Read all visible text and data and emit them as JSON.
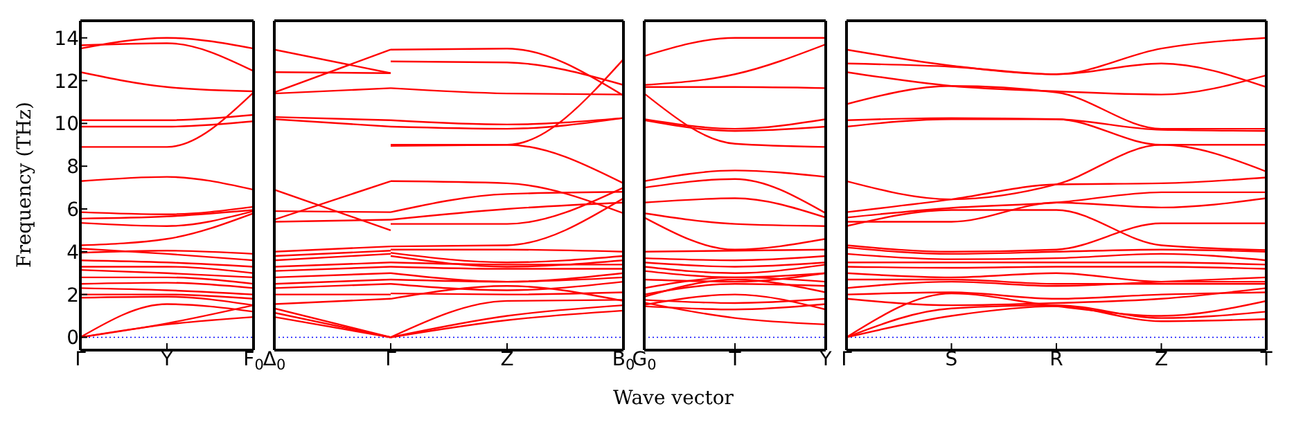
{
  "chart_data": [
    {
      "type": "line",
      "color": "#ff0000",
      "ylabel": "Frequency (THz)",
      "annotations": [
        "Wave vector"
      ],
      "categories": [
        "Γ",
        "Y",
        "F$_{0}$"
      ],
      "ylim": [
        -0.6,
        14.8
      ],
      "yticks": [
        0,
        2,
        4,
        6,
        8,
        10,
        12,
        14
      ],
      "ref_lines": [
        {
          "axis": "y",
          "value": 0,
          "color": "#0000ff",
          "line_style": "dotted"
        }
      ],
      "series": [
        {
          "values": [
            13.5,
            14.0,
            13.5
          ]
        },
        {
          "values": [
            13.65,
            13.75,
            12.45
          ]
        },
        {
          "values": [
            12.4,
            11.7,
            11.5
          ]
        },
        {
          "values": [
            10.15,
            10.15,
            10.4
          ]
        },
        {
          "values": [
            9.85,
            9.85,
            10.1
          ]
        },
        {
          "values": [
            8.9,
            8.9,
            11.45
          ]
        },
        {
          "values": [
            7.3,
            7.5,
            6.9
          ]
        },
        {
          "values": [
            5.85,
            5.75,
            6.1
          ]
        },
        {
          "values": [
            5.55,
            5.65,
            5.95
          ]
        },
        {
          "values": [
            5.35,
            5.2,
            5.9
          ]
        },
        {
          "values": [
            4.3,
            4.6,
            5.8
          ]
        },
        {
          "values": [
            4.15,
            3.9,
            3.6
          ]
        },
        {
          "values": [
            3.95,
            4.05,
            3.9
          ]
        },
        {
          "values": [
            3.6,
            3.5,
            3.3
          ]
        },
        {
          "values": [
            3.3,
            3.3,
            3.0
          ]
        },
        {
          "values": [
            3.15,
            3.0,
            2.8
          ]
        },
        {
          "values": [
            2.8,
            2.8,
            2.5
          ]
        },
        {
          "values": [
            2.5,
            2.55,
            2.3
          ]
        },
        {
          "values": [
            2.3,
            2.2,
            2.0
          ]
        },
        {
          "values": [
            2.0,
            2.0,
            1.8
          ]
        },
        {
          "values": [
            1.85,
            1.9,
            1.5
          ]
        },
        {
          "values": [
            0,
            1.55,
            1.2
          ]
        },
        {
          "values": [
            0,
            0.6,
            0.95
          ]
        },
        {
          "values": [
            0,
            0.65,
            1.5
          ]
        }
      ]
    },
    {
      "type": "line",
      "color": "#ff0000",
      "categories": [
        "Δ$_{0}$",
        "Γ",
        "Z",
        "B$_{0}$"
      ],
      "ylim": [
        -0.6,
        14.8
      ],
      "yticks": [
        0,
        2,
        4,
        6,
        8,
        10,
        12,
        14
      ],
      "tick_labels": "x",
      "ref_lines": [
        {
          "axis": "y",
          "value": 0,
          "color": "#0000ff",
          "line_style": "dotted"
        }
      ],
      "series": [
        {
          "values": [
            13.45,
            12.35,
            null,
            null
          ]
        },
        {
          "values": [
            12.4,
            12.35,
            null,
            null
          ]
        },
        {
          "values": [
            11.45,
            13.45,
            null,
            null
          ]
        },
        {
          "values": [
            11.4,
            11.65,
            null,
            null
          ]
        },
        {
          "values": [
            10.3,
            10.15,
            null,
            null
          ]
        },
        {
          "values": [
            10.2,
            9.85,
            null,
            null
          ]
        },
        {
          "values": [
            6.9,
            5.0,
            null,
            null
          ]
        },
        {
          "values": [
            5.5,
            7.3,
            null,
            null
          ]
        },
        {
          "values": [
            5.9,
            5.85,
            null,
            null
          ]
        },
        {
          "values": [
            5.4,
            5.5,
            null,
            null
          ]
        },
        {
          "values": [
            4.0,
            4.25,
            null,
            null
          ]
        },
        {
          "values": [
            3.8,
            4.05,
            null,
            null
          ]
        },
        {
          "values": [
            3.6,
            3.9,
            null,
            null
          ]
        },
        {
          "values": [
            3.3,
            3.5,
            null,
            null
          ]
        },
        {
          "values": [
            3.1,
            3.3,
            null,
            null
          ]
        },
        {
          "values": [
            2.8,
            3.0,
            null,
            null
          ]
        },
        {
          "values": [
            2.5,
            2.7,
            null,
            null
          ]
        },
        {
          "values": [
            2.3,
            2.5,
            null,
            null
          ]
        },
        {
          "values": [
            2.0,
            2.0,
            null,
            null
          ]
        },
        {
          "values": [
            1.55,
            1.8,
            null,
            null
          ]
        },
        {
          "values": [
            1.35,
            0,
            null,
            null
          ]
        },
        {
          "values": [
            1.15,
            0,
            null,
            null
          ]
        },
        {
          "values": [
            0.95,
            0,
            null,
            null
          ]
        },
        {
          "values": [
            null,
            13.45,
            13.5,
            11.3
          ]
        },
        {
          "values": [
            null,
            9.0,
            9.0,
            13.0
          ]
        },
        {
          "values": [
            null,
            12.9,
            12.85,
            11.8
          ]
        },
        {
          "values": [
            null,
            11.65,
            11.4,
            11.35
          ]
        },
        {
          "values": [
            null,
            10.15,
            9.95,
            10.25
          ]
        },
        {
          "values": [
            null,
            9.85,
            9.75,
            10.25
          ]
        },
        {
          "values": [
            null,
            8.95,
            9.0,
            7.2
          ]
        },
        {
          "values": [
            null,
            7.3,
            7.2,
            5.8
          ]
        },
        {
          "values": [
            null,
            5.85,
            6.7,
            6.8
          ]
        },
        {
          "values": [
            null,
            5.5,
            6.0,
            6.3
          ]
        },
        {
          "values": [
            null,
            5.3,
            5.3,
            7.0
          ]
        },
        {
          "values": [
            null,
            4.25,
            4.3,
            6.5
          ]
        },
        {
          "values": [
            null,
            4.1,
            4.1,
            4.0
          ]
        },
        {
          "values": [
            null,
            3.95,
            3.5,
            3.8
          ]
        },
        {
          "values": [
            null,
            3.8,
            3.3,
            3.6
          ]
        },
        {
          "values": [
            null,
            3.5,
            3.4,
            3.4
          ]
        },
        {
          "values": [
            null,
            3.3,
            3.2,
            3.2
          ]
        },
        {
          "values": [
            null,
            3.0,
            2.6,
            3.0
          ]
        },
        {
          "values": [
            null,
            2.7,
            2.6,
            2.8
          ]
        },
        {
          "values": [
            null,
            2.5,
            2.2,
            2.6
          ]
        },
        {
          "values": [
            null,
            2.05,
            2.0,
            2.1
          ]
        },
        {
          "values": [
            null,
            1.8,
            2.4,
            1.7
          ]
        },
        {
          "values": [
            null,
            0,
            1.7,
            1.75
          ]
        },
        {
          "values": [
            null,
            0,
            1.0,
            1.5
          ]
        },
        {
          "values": [
            null,
            0,
            0.8,
            1.25
          ]
        }
      ]
    },
    {
      "type": "line",
      "color": "#ff0000",
      "categories": [
        "G$_{0}$",
        "T",
        "Y"
      ],
      "ylim": [
        -0.6,
        14.8
      ],
      "yticks": [
        0,
        2,
        4,
        6,
        8,
        10,
        12,
        14
      ],
      "tick_labels": "x",
      "ref_lines": [
        {
          "axis": "y",
          "value": 0,
          "color": "#0000ff",
          "line_style": "dotted"
        }
      ],
      "series": [
        {
          "values": [
            13.15,
            14.0,
            14.0
          ]
        },
        {
          "values": [
            11.8,
            12.3,
            13.7
          ]
        },
        {
          "values": [
            11.7,
            11.7,
            11.65
          ]
        },
        {
          "values": [
            11.4,
            9.05,
            8.9
          ]
        },
        {
          "values": [
            10.2,
            9.75,
            10.2
          ]
        },
        {
          "values": [
            10.15,
            9.65,
            9.85
          ]
        },
        {
          "values": [
            7.3,
            7.8,
            7.5
          ]
        },
        {
          "values": [
            7.0,
            7.4,
            5.8
          ]
        },
        {
          "values": [
            6.3,
            6.5,
            5.6
          ]
        },
        {
          "values": [
            5.8,
            5.3,
            5.2
          ]
        },
        {
          "values": [
            5.6,
            4.1,
            4.6
          ]
        },
        {
          "values": [
            4.0,
            4.05,
            4.1
          ]
        },
        {
          "values": [
            3.7,
            3.6,
            3.8
          ]
        },
        {
          "values": [
            3.5,
            3.3,
            3.5
          ]
        },
        {
          "values": [
            3.3,
            3.0,
            3.4
          ]
        },
        {
          "values": [
            3.1,
            2.8,
            3.0
          ]
        },
        {
          "values": [
            2.7,
            2.6,
            3.0
          ]
        },
        {
          "values": [
            2.3,
            2.8,
            2.6
          ]
        },
        {
          "values": [
            2.0,
            2.5,
            2.4
          ]
        },
        {
          "values": [
            1.9,
            2.7,
            2.1
          ]
        },
        {
          "values": [
            1.75,
            1.6,
            1.8
          ]
        },
        {
          "values": [
            1.45,
            1.3,
            1.55
          ]
        },
        {
          "values": [
            1.62,
            0.9,
            0.6
          ]
        },
        {
          "values": [
            1.52,
            2.0,
            1.3
          ]
        }
      ]
    },
    {
      "type": "line",
      "color": "#ff0000",
      "categories": [
        "Γ",
        "S",
        "R",
        "Z",
        "T"
      ],
      "ylim": [
        -0.6,
        14.8
      ],
      "yticks": [
        0,
        2,
        4,
        6,
        8,
        10,
        12,
        14
      ],
      "tick_labels": "x",
      "ref_lines": [
        {
          "axis": "y",
          "value": 0,
          "color": "#0000ff",
          "line_style": "dotted"
        }
      ],
      "series": [
        {
          "values": [
            13.45,
            12.7,
            12.3,
            13.5,
            14.0
          ]
        },
        {
          "values": [
            12.8,
            12.65,
            12.3,
            12.8,
            11.7
          ]
        },
        {
          "values": [
            12.4,
            11.75,
            11.5,
            11.35,
            12.25
          ]
        },
        {
          "values": [
            10.9,
            11.75,
            11.45,
            9.75,
            9.75
          ]
        },
        {
          "values": [
            10.15,
            10.25,
            10.2,
            9.7,
            9.65
          ]
        },
        {
          "values": [
            9.85,
            10.2,
            10.2,
            9.0,
            9.0
          ]
        },
        {
          "values": [
            7.3,
            6.45,
            7.15,
            9.0,
            7.75
          ]
        },
        {
          "values": [
            5.85,
            6.45,
            7.15,
            7.2,
            7.47
          ]
        },
        {
          "values": [
            5.6,
            6.05,
            6.3,
            6.78,
            6.78
          ]
        },
        {
          "values": [
            5.4,
            5.4,
            6.3,
            6.07,
            6.5
          ]
        },
        {
          "values": [
            5.2,
            5.95,
            5.95,
            4.3,
            4.08
          ]
        },
        {
          "values": [
            4.3,
            4.0,
            4.1,
            5.33,
            5.33
          ]
        },
        {
          "values": [
            4.2,
            3.9,
            4.0,
            4.1,
            4.0
          ]
        },
        {
          "values": [
            3.9,
            3.65,
            3.7,
            3.9,
            3.6
          ]
        },
        {
          "values": [
            3.5,
            3.5,
            3.5,
            3.5,
            3.4
          ]
        },
        {
          "values": [
            3.3,
            3.25,
            3.3,
            3.3,
            3.2
          ]
        },
        {
          "values": [
            3.0,
            2.8,
            3.0,
            2.6,
            2.6
          ]
        },
        {
          "values": [
            2.7,
            2.7,
            2.5,
            2.5,
            2.5
          ]
        },
        {
          "values": [
            2.3,
            2.6,
            2.4,
            2.6,
            2.8
          ]
        },
        {
          "values": [
            2.0,
            2.1,
            1.8,
            2.0,
            2.1
          ]
        },
        {
          "values": [
            1.8,
            1.5,
            1.6,
            1.8,
            2.3
          ]
        },
        {
          "values": [
            0,
            2.05,
            1.45,
            1.0,
            1.7
          ]
        },
        {
          "values": [
            0,
            1.35,
            1.5,
            0.9,
            1.2
          ]
        },
        {
          "values": [
            0,
            1.0,
            1.45,
            0.75,
            0.85
          ]
        }
      ]
    }
  ]
}
